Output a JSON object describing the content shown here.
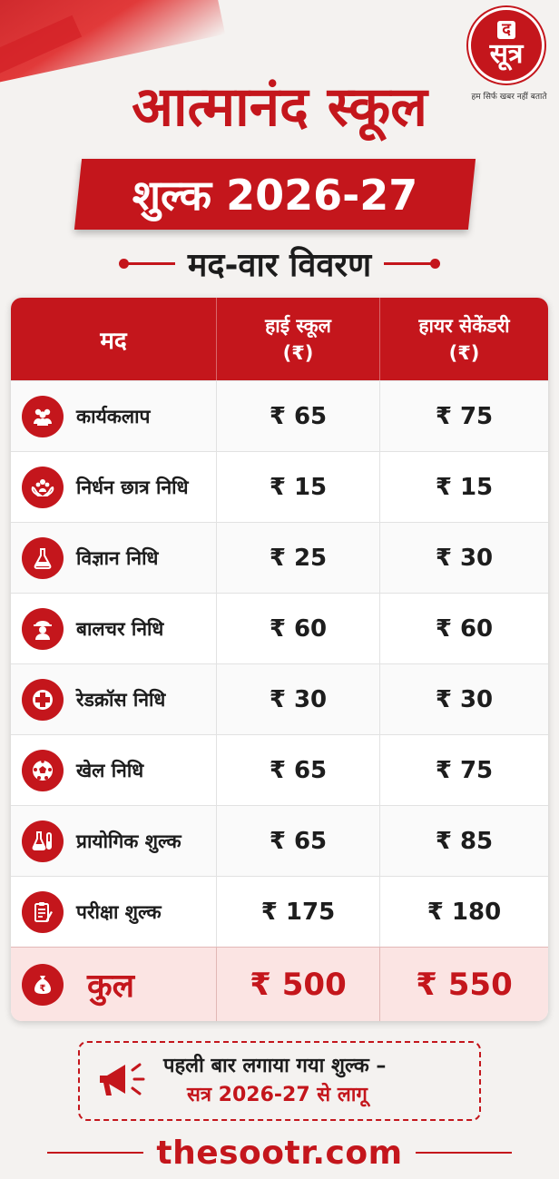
{
  "brand": {
    "logo_top": "द",
    "logo_main": "सूत्र",
    "tagline": "हम सिर्फ खबर नहीं बताते",
    "website": "thesootr.com",
    "accent_color": "#c4161c"
  },
  "header": {
    "title": "आत्मानंद स्कूल",
    "subtitle": "शुल्क 2026-27",
    "section_label": "मद-वार विवरण"
  },
  "table": {
    "headers": {
      "item": "मद",
      "high_school": "हाई स्कूल",
      "high_school_unit": "(₹)",
      "higher_secondary": "हायर सेकेंडरी",
      "higher_secondary_unit": "(₹)"
    },
    "rows": [
      {
        "label": "कार्यकलाप",
        "icon": "group-icon",
        "high_school": "₹ 65",
        "higher_secondary": "₹ 75"
      },
      {
        "label": "निर्धन छात्र निधि",
        "icon": "helping-hands-icon",
        "high_school": "₹ 15",
        "higher_secondary": "₹ 15"
      },
      {
        "label": "विज्ञान निधि",
        "icon": "flask-icon",
        "high_school": "₹ 25",
        "higher_secondary": "₹ 30"
      },
      {
        "label": "बालचर निधि",
        "icon": "scout-icon",
        "high_school": "₹ 60",
        "higher_secondary": "₹ 60"
      },
      {
        "label": "रेडक्रॉस निधि",
        "icon": "red-cross-icon",
        "high_school": "₹ 30",
        "higher_secondary": "₹ 30"
      },
      {
        "label": "खेल निधि",
        "icon": "football-icon",
        "high_school": "₹ 65",
        "higher_secondary": "₹ 75"
      },
      {
        "label": "प्रायोगिक शुल्क",
        "icon": "lab-tubes-icon",
        "high_school": "₹ 65",
        "higher_secondary": "₹ 85"
      },
      {
        "label": "परीक्षा शुल्क",
        "icon": "exam-paper-icon",
        "high_school": "₹ 175",
        "higher_secondary": "₹ 180"
      }
    ],
    "total": {
      "label": "कुल",
      "icon": "money-bag-icon",
      "high_school": "₹ 500",
      "higher_secondary": "₹ 550"
    }
  },
  "notice": {
    "icon": "megaphone-icon",
    "line1": "पहली बार लगाया गया शुल्क –",
    "line2": "सत्र 2026-27 से लागू"
  }
}
